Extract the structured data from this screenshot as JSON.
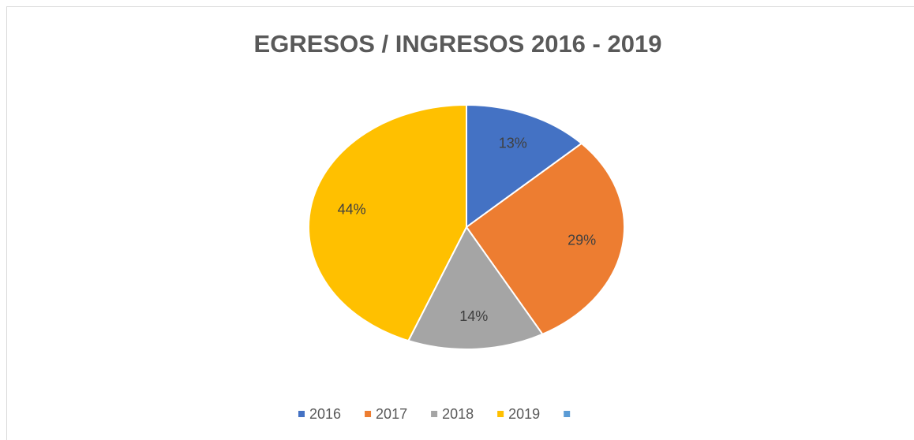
{
  "chart_data": {
    "type": "pie",
    "title": "EGRESOS / INGRESOS  2016 - 2019",
    "categories": [
      "2016",
      "2017",
      "2018",
      "2019",
      null
    ],
    "values": [
      13,
      29,
      14,
      44,
      null
    ],
    "value_labels": [
      "13%",
      "29%",
      "14%",
      "44%",
      null
    ],
    "colors": [
      "#4472c4",
      "#ed7d31",
      "#a5a5a5",
      "#ffc000",
      "#5b9bd5"
    ],
    "legend": "bottom"
  }
}
